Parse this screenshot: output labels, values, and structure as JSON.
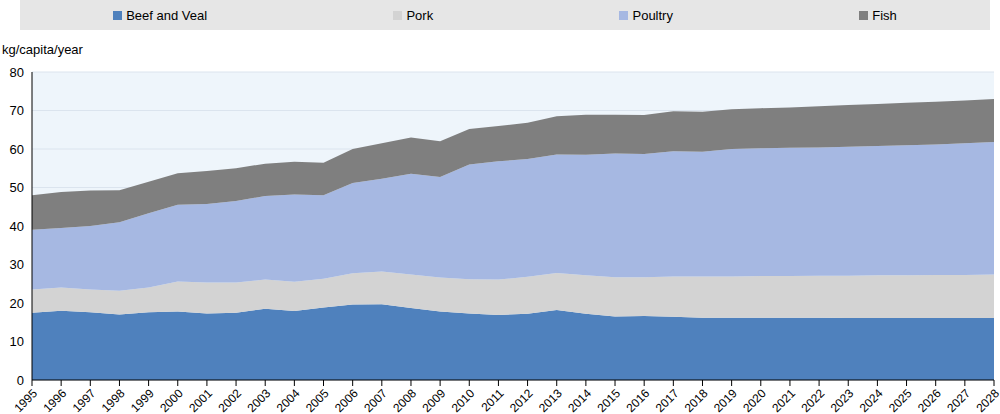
{
  "chart_data": {
    "type": "area",
    "stacked": true,
    "grid": true,
    "legend": "top",
    "y_label": "kg/capita/year",
    "categories": [
      "1995",
      "1996",
      "1997",
      "1998",
      "1999",
      "2000",
      "2001",
      "2002",
      "2003",
      "2004",
      "2005",
      "2006",
      "2007",
      "2008",
      "2009",
      "2010",
      "2011",
      "2012",
      "2013",
      "2014",
      "2015",
      "2016",
      "2017",
      "2018",
      "2019",
      "2020",
      "2021",
      "2022",
      "2023",
      "2024",
      "2025",
      "2026",
      "2027",
      "2028"
    ],
    "ylim": [
      0,
      80
    ],
    "yticks": [
      0,
      10,
      20,
      30,
      40,
      50,
      60,
      70,
      80
    ],
    "series": [
      {
        "name": "Beef and Veal",
        "color": "#4f81bd",
        "values": [
          17.5,
          18,
          17.6,
          17,
          17.6,
          17.8,
          17.3,
          17.5,
          18.5,
          17.9,
          18.8,
          19.6,
          19.7,
          18.7,
          17.8,
          17.3,
          16.9,
          17.2,
          18.2,
          17.2,
          16.5,
          16.6,
          16.4,
          16.2,
          16.2,
          16.2,
          16.2,
          16.2,
          16.1,
          16.1,
          16.1,
          16.1,
          16.1,
          16.1
        ]
      },
      {
        "name": "Pork",
        "color": "#d3d3d3",
        "values": [
          6.0,
          6.0,
          5.9,
          6.2,
          6.4,
          7.8,
          8.0,
          7.8,
          7.6,
          7.6,
          7.5,
          8.1,
          8.5,
          8.7,
          8.8,
          8.9,
          9.2,
          9.6,
          9.6,
          10.0,
          10.2,
          10.1,
          10.5,
          10.7,
          10.7,
          10.8,
          10.8,
          10.9,
          11.0,
          11.1,
          11.1,
          11.2,
          11.2,
          11.3
        ]
      },
      {
        "name": "Poultry",
        "color": "#a6b8e2",
        "values": [
          15.5,
          15.5,
          16.5,
          17.8,
          19.3,
          19.9,
          20.4,
          21.2,
          21.7,
          22.7,
          21.7,
          23.5,
          24.1,
          26.2,
          26.1,
          29.8,
          30.7,
          30.6,
          30.8,
          31.3,
          32.1,
          32.0,
          32.5,
          32.4,
          33.1,
          33.2,
          33.3,
          33.3,
          33.5,
          33.6,
          33.8,
          33.9,
          34.2,
          34.4
        ]
      },
      {
        "name": "Fish",
        "color": "#7f7f7f",
        "values": [
          9.0,
          9.3,
          9.2,
          8.3,
          8.2,
          8.2,
          8.6,
          8.5,
          8.4,
          8.5,
          8.4,
          8.8,
          9.2,
          9.4,
          9.3,
          9.2,
          9.2,
          9.4,
          9.9,
          10.4,
          10.1,
          10.1,
          10.4,
          10.4,
          10.3,
          10.4,
          10.5,
          10.7,
          10.8,
          10.9,
          11.0,
          11.1,
          11.1,
          11.2
        ]
      }
    ]
  }
}
